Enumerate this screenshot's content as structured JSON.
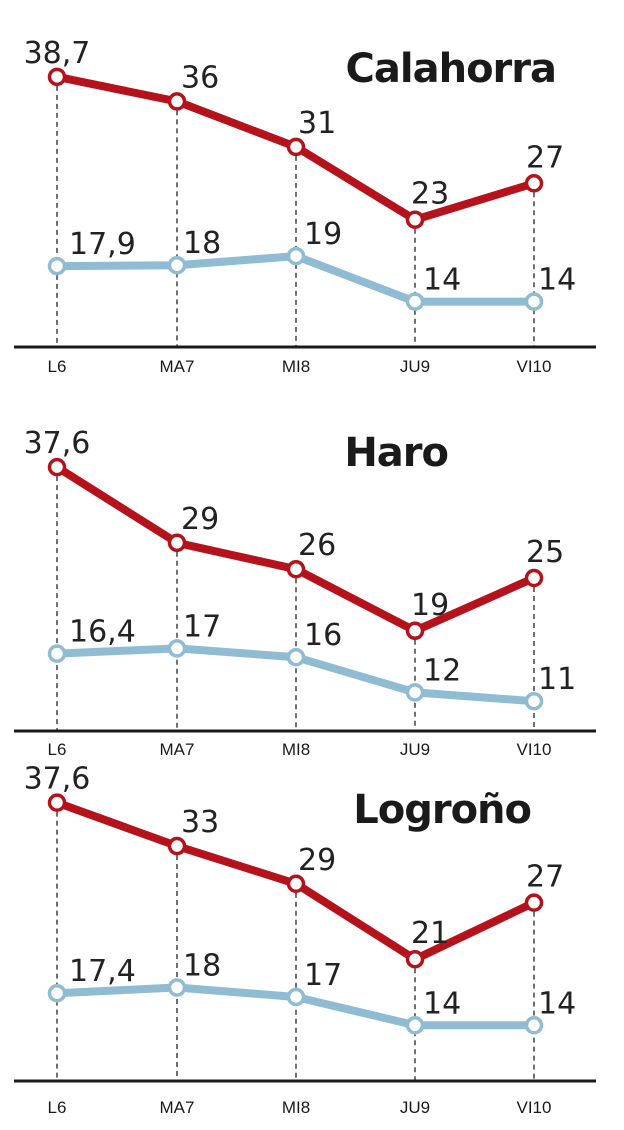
{
  "colors": {
    "max_series": "#b5121b",
    "min_series": "#8fbcd2"
  },
  "chart_data": [
    {
      "type": "line",
      "title": "Calahorra",
      "categories": [
        "L6",
        "MA7",
        "MI8",
        "JU9",
        "VI10"
      ],
      "series": [
        {
          "values": [
            38.7,
            36,
            31,
            23,
            27
          ],
          "labels": [
            "38,7",
            "36",
            "31",
            "23",
            "27"
          ]
        },
        {
          "values": [
            17.9,
            18,
            19,
            14,
            14
          ],
          "labels": [
            "17,9",
            "18",
            "19",
            "14",
            "14"
          ]
        }
      ]
    },
    {
      "type": "line",
      "title": "Haro",
      "categories": [
        "L6",
        "MA7",
        "MI8",
        "JU9",
        "VI10"
      ],
      "series": [
        {
          "values": [
            37.6,
            29,
            26,
            19,
            25
          ],
          "labels": [
            "37,6",
            "29",
            "26",
            "19",
            "25"
          ]
        },
        {
          "values": [
            16.4,
            17,
            16,
            12,
            11
          ],
          "labels": [
            "16,4",
            "17",
            "16",
            "12",
            "11"
          ]
        }
      ]
    },
    {
      "type": "line",
      "title": "Logroño",
      "categories": [
        "L6",
        "MA7",
        "MI8",
        "JU9",
        "VI10"
      ],
      "series": [
        {
          "values": [
            37.6,
            33,
            29,
            21,
            27
          ],
          "labels": [
            "37,6",
            "33",
            "29",
            "21",
            "27"
          ]
        },
        {
          "values": [
            17.4,
            18,
            17,
            14,
            14
          ],
          "labels": [
            "17,4",
            "18",
            "17",
            "14",
            "14"
          ]
        }
      ]
    }
  ]
}
